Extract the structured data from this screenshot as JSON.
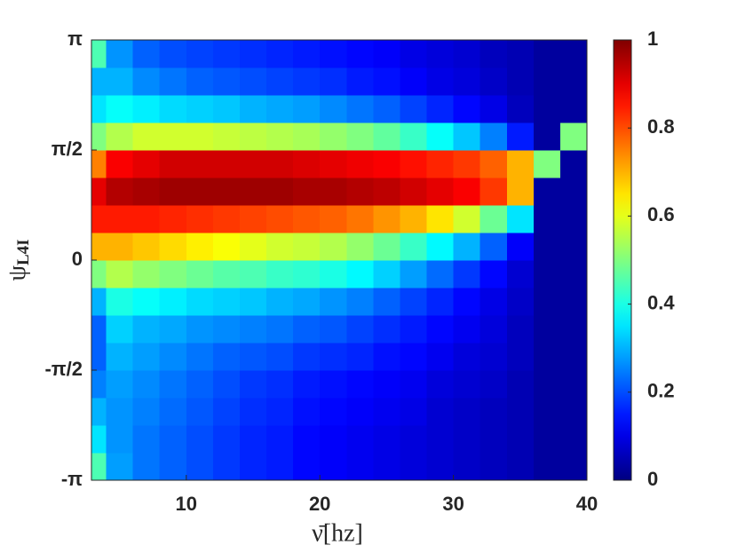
{
  "chart_data": {
    "type": "heatmap",
    "xlabel": "ν̄[hz]",
    "ylabel": {
      "symbol": "ψ",
      "subscript": "L4I"
    },
    "xlim": [
      2.9,
      40
    ],
    "xticks": [
      10,
      20,
      30,
      40
    ],
    "ylim": [
      -3.1416,
      3.1416
    ],
    "yticks": [
      {
        "value": -3.1416,
        "label": "-π"
      },
      {
        "value": -1.5708,
        "label": "-π/2"
      },
      0,
      {
        "value": 1.5708,
        "label": "π/2"
      },
      {
        "value": 3.1416,
        "label": "π"
      }
    ],
    "colormap": "jet",
    "clim": [
      0,
      1
    ],
    "cticks": [
      0,
      0.2,
      0.4,
      0.6,
      0.8,
      1
    ],
    "x_edges": [
      2.9,
      4,
      6,
      8,
      10,
      12,
      14,
      16,
      18,
      20,
      22,
      24,
      26,
      28,
      30,
      32,
      34,
      36,
      38,
      40
    ],
    "y_edges": [
      -3.1416,
      -2.7489,
      -2.3562,
      -1.9635,
      -1.5708,
      -1.1781,
      -0.7854,
      -0.3927,
      0,
      0.3927,
      0.7854,
      1.1781,
      1.5708,
      1.9635,
      2.3562,
      2.7489,
      3.1416
    ],
    "z": [
      [
        0.45,
        0.28,
        0.24,
        0.22,
        0.2,
        0.18,
        0.16,
        0.15,
        0.13,
        0.12,
        0.11,
        0.1,
        0.09,
        0.08,
        0.07,
        0.06,
        0.05,
        0.03,
        0.03
      ],
      [
        0.35,
        0.27,
        0.24,
        0.22,
        0.2,
        0.18,
        0.16,
        0.15,
        0.13,
        0.12,
        0.11,
        0.1,
        0.09,
        0.08,
        0.07,
        0.06,
        0.05,
        0.03,
        0.03
      ],
      [
        0.3,
        0.27,
        0.25,
        0.23,
        0.21,
        0.19,
        0.17,
        0.16,
        0.14,
        0.13,
        0.12,
        0.11,
        0.1,
        0.08,
        0.07,
        0.06,
        0.05,
        0.03,
        0.03
      ],
      [
        0.25,
        0.28,
        0.26,
        0.24,
        0.22,
        0.2,
        0.18,
        0.17,
        0.15,
        0.14,
        0.13,
        0.12,
        0.11,
        0.09,
        0.08,
        0.07,
        0.05,
        0.03,
        0.03
      ],
      [
        0.22,
        0.3,
        0.28,
        0.26,
        0.24,
        0.22,
        0.21,
        0.2,
        0.18,
        0.17,
        0.16,
        0.14,
        0.13,
        0.11,
        0.09,
        0.08,
        0.06,
        0.03,
        0.03
      ],
      [
        0.22,
        0.33,
        0.3,
        0.29,
        0.27,
        0.26,
        0.25,
        0.24,
        0.22,
        0.21,
        0.19,
        0.17,
        0.15,
        0.13,
        0.11,
        0.09,
        0.06,
        0.03,
        0.03
      ],
      [
        0.3,
        0.4,
        0.38,
        0.36,
        0.34,
        0.33,
        0.32,
        0.3,
        0.29,
        0.27,
        0.25,
        0.22,
        0.19,
        0.16,
        0.13,
        0.1,
        0.07,
        0.03,
        0.03
      ],
      [
        0.5,
        0.55,
        0.52,
        0.5,
        0.48,
        0.46,
        0.45,
        0.43,
        0.42,
        0.4,
        0.37,
        0.33,
        0.28,
        0.23,
        0.18,
        0.13,
        0.08,
        0.03,
        0.03
      ],
      [
        0.7,
        0.7,
        0.68,
        0.66,
        0.64,
        0.62,
        0.6,
        0.58,
        0.57,
        0.55,
        0.52,
        0.48,
        0.43,
        0.37,
        0.3,
        0.22,
        0.12,
        0.03,
        0.03
      ],
      [
        0.85,
        0.85,
        0.85,
        0.84,
        0.83,
        0.82,
        0.81,
        0.8,
        0.79,
        0.78,
        0.76,
        0.73,
        0.7,
        0.65,
        0.58,
        0.48,
        0.35,
        0.03,
        0.03
      ],
      [
        0.9,
        0.95,
        0.96,
        0.97,
        0.97,
        0.97,
        0.97,
        0.97,
        0.96,
        0.96,
        0.95,
        0.94,
        0.92,
        0.9,
        0.88,
        0.82,
        0.7,
        0.03,
        0.03
      ],
      [
        0.75,
        0.88,
        0.9,
        0.92,
        0.92,
        0.92,
        0.92,
        0.92,
        0.91,
        0.9,
        0.89,
        0.88,
        0.86,
        0.84,
        0.82,
        0.78,
        0.7,
        0.5,
        0.03
      ],
      [
        0.5,
        0.55,
        0.58,
        0.58,
        0.58,
        0.57,
        0.56,
        0.55,
        0.54,
        0.52,
        0.5,
        0.47,
        0.43,
        0.38,
        0.32,
        0.25,
        0.15,
        0.03,
        0.5
      ],
      [
        0.35,
        0.38,
        0.36,
        0.34,
        0.33,
        0.32,
        0.3,
        0.29,
        0.28,
        0.26,
        0.24,
        0.22,
        0.19,
        0.16,
        0.13,
        0.1,
        0.06,
        0.03,
        0.03
      ],
      [
        0.3,
        0.3,
        0.26,
        0.24,
        0.22,
        0.21,
        0.2,
        0.19,
        0.18,
        0.17,
        0.15,
        0.14,
        0.12,
        0.1,
        0.09,
        0.07,
        0.05,
        0.03,
        0.03
      ],
      [
        0.45,
        0.27,
        0.22,
        0.2,
        0.19,
        0.18,
        0.17,
        0.16,
        0.15,
        0.14,
        0.13,
        0.12,
        0.1,
        0.09,
        0.08,
        0.06,
        0.05,
        0.03,
        0.03
      ]
    ]
  }
}
